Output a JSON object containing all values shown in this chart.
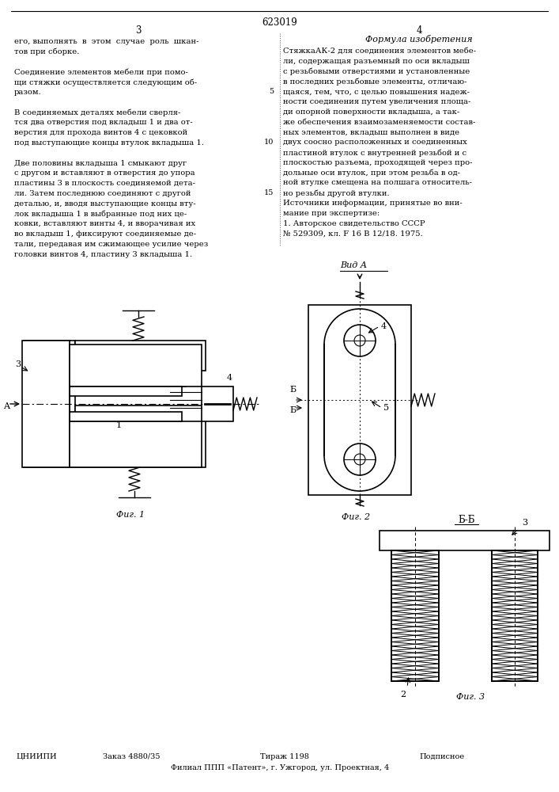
{
  "page_number_center": "623019",
  "page_num_left": "3",
  "page_num_right": "4",
  "background_color": "#ffffff",
  "text_color": "#000000",
  "title_formula": "Формула изобретения",
  "left_col_text": [
    "его, выполнять  в  этом  случае  роль  шкан-",
    "тов при сборке.",
    "",
    "Соединение элементов мебели при помо-",
    "щи стяжки осуществляется следующим об-",
    "разом.",
    "",
    "В соединяемых деталях мебели сверля-",
    "тся два отверстия под вкладыш 1 и два от-",
    "верстия для прохода винтов 4 с цековкой",
    "под выступающие концы втулок вкладыша 1.",
    "",
    "Две половины вкладыша 1 смыкают друг",
    "с другом и вставляют в отверстия до упора",
    "пластины 3 в плоскость соединяемой дета-",
    "ли. Затем последнюю соединяют с другой",
    "деталью, и, вводя выступающие концы вту-",
    "лок вкладыша 1 в выбранные под них це-",
    "ковки, вставляют винты 4, и вворачивая их",
    "во вкладыш 1, фиксируют соединяемые де-",
    "тали, передавая им сжимающее усилие через",
    "головки винтов 4, пластину 3 вкладыша 1."
  ],
  "right_col_text": [
    "СтяжкаАК-2 для соединения элементов мебе-",
    "ли, содержащая разъемный по оси вкладыш",
    "с резьбовыми отверстиями и установленные",
    "в последних резьбовые элементы, отличаю-",
    "щаяся, тем, что, с целью повышения надеж-",
    "ности соединения путем увеличения площа-",
    "ди опорной поверхности вкладыша, а так-",
    "же обеспечения взаимозаменяемости состав-",
    "ных элементов, вкладыш выполнен в виде",
    "двух соосно расположенных и соединенных",
    "пластиной втулок с внутренней резьбой и с",
    "плоскостью разъема, проходящей через про-",
    "дольные оси втулок, при этом резьба в од-",
    "ной втулке смещена на полшага относитель-",
    "но резьбы другой втулки.",
    "Источники информации, принятые во вни-",
    "мание при экспертизе:",
    "1. Авторское свидетельство СССР",
    "№ 529309, кл. F 16 B 12/18. 1975."
  ],
  "bottom_text_left": "ЦНИИПИ",
  "bottom_order": "Заказ 4880/35",
  "bottom_tirazh": "Тираж 1198",
  "bottom_podpisnoe": "Подписное",
  "bottom_filial": "Филиал ППП «Патент», г. Ужгород, ул. Проектная, 4"
}
